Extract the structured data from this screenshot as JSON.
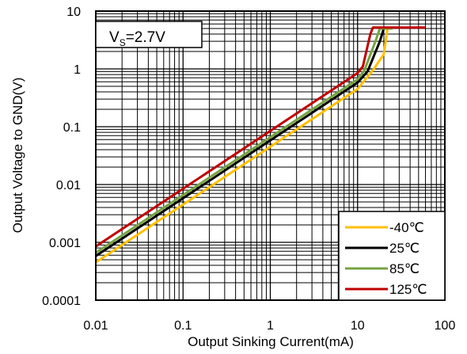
{
  "chart_data": {
    "type": "line",
    "title": "",
    "xlabel": "Output Sinking Current(mA)",
    "ylabel": "Output Voltage to GND(V)",
    "xscale": "log",
    "yscale": "log",
    "xlim": [
      0.01,
      100
    ],
    "ylim": [
      0.0001,
      10
    ],
    "xticks": [
      "0.01",
      "0.1",
      "1",
      "10",
      "100"
    ],
    "yticks": [
      "0.0001",
      "0.001",
      "0.01",
      "0.1",
      "1",
      "10"
    ],
    "grid": true,
    "annotation": {
      "base": "V",
      "sub": "S",
      "rest": "=2.7V"
    },
    "legend": {
      "position": "bottom-right"
    },
    "series": [
      {
        "name": "-40℃",
        "color": "#FFC000",
        "x": [
          0.01,
          0.1,
          1,
          10,
          15,
          20,
          22,
          25
        ],
        "y": [
          0.00045,
          0.0045,
          0.045,
          0.45,
          0.95,
          1.8,
          5.0,
          5.0
        ]
      },
      {
        "name": "25℃",
        "color": "#000000",
        "x": [
          0.01,
          0.1,
          1,
          10,
          13,
          18,
          20,
          25
        ],
        "y": [
          0.00058,
          0.0058,
          0.058,
          0.58,
          0.9,
          3.0,
          5.0,
          5.0
        ]
      },
      {
        "name": "85℃",
        "color": "#76A341",
        "x": [
          0.01,
          0.1,
          1,
          10,
          12,
          16,
          18,
          25
        ],
        "y": [
          0.00066,
          0.0066,
          0.066,
          0.66,
          0.95,
          3.0,
          5.0,
          5.0
        ]
      },
      {
        "name": "125℃",
        "color": "#C00000",
        "x": [
          0.01,
          0.1,
          1,
          10,
          11.5,
          14,
          15,
          60
        ],
        "y": [
          0.00085,
          0.0085,
          0.085,
          0.85,
          1.1,
          4.0,
          5.2,
          5.2
        ]
      }
    ]
  }
}
